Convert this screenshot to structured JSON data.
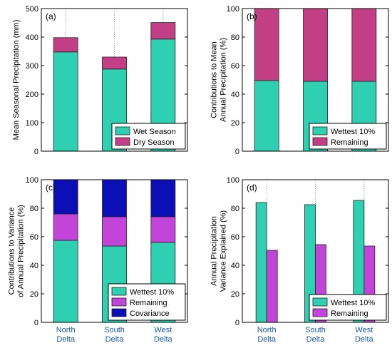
{
  "chart_data": [
    {
      "panel": "(a)",
      "type": "bar",
      "stacked": true,
      "categories": [
        "North\nDelta",
        "South\nDelta",
        "West\nDelta"
      ],
      "ylabel": "Mean Seasonal Precipitation (mm)",
      "ylim": [
        0,
        500
      ],
      "yticks": [
        0,
        100,
        200,
        300,
        400,
        500
      ],
      "grid": "vertical dotted at categories",
      "legend_position": "bottom-right",
      "series": [
        {
          "name": "Wet Season",
          "color": "#2fcfb2",
          "values": [
            348,
            288,
            393
          ]
        },
        {
          "name": "Dry Season",
          "color": "#c23f86",
          "values": [
            50,
            42,
            58
          ]
        }
      ]
    },
    {
      "panel": "(b)",
      "type": "bar",
      "stacked": true,
      "categories": [
        "North\nDelta",
        "South\nDelta",
        "West\nDelta"
      ],
      "ylabel": "Contributions to Mean\nAnnual Precipitation (%)",
      "ylim": [
        0,
        100
      ],
      "yticks": [
        0,
        20,
        40,
        60,
        80,
        100
      ],
      "grid": "vertical dotted at categories",
      "legend_position": "bottom-right",
      "series": [
        {
          "name": "Wettest 10%",
          "color": "#2fcfb2",
          "values": [
            49.5,
            49,
            49
          ]
        },
        {
          "name": "Remaining",
          "color": "#c23f86",
          "values": [
            50.5,
            51,
            51
          ]
        }
      ]
    },
    {
      "panel": "(c)",
      "type": "bar",
      "stacked": true,
      "categories": [
        "North\nDelta",
        "South\nDelta",
        "West\nDelta"
      ],
      "ylabel": "Contributions to Variance\nof Annual Precipitation (%)",
      "ylim": [
        0,
        100
      ],
      "yticks": [
        0,
        20,
        40,
        60,
        80,
        100
      ],
      "grid": "vertical dotted at categories",
      "legend_position": "bottom-right",
      "series": [
        {
          "name": "Wettest 10%",
          "color": "#2fcfb2",
          "values": [
            57.5,
            53.5,
            56
          ]
        },
        {
          "name": "Remaining",
          "color": "#c244d8",
          "values": [
            18.5,
            20.5,
            18
          ]
        },
        {
          "name": "Covariance",
          "color": "#0b0fb5",
          "values": [
            24,
            26,
            26
          ]
        }
      ]
    },
    {
      "panel": "(d)",
      "type": "bar",
      "stacked": false,
      "categories": [
        "North\nDelta",
        "South\nDelta",
        "West\nDelta"
      ],
      "ylabel": "Annual Precipitation\nVariance Explained (%)",
      "ylim": [
        0,
        100
      ],
      "yticks": [
        0,
        20,
        40,
        60,
        80,
        100
      ],
      "grid": "vertical dotted at categories",
      "legend_position": "bottom-right",
      "series": [
        {
          "name": "Wettest 10%",
          "color": "#2fcfb2",
          "values": [
            84,
            82.5,
            85.5
          ]
        },
        {
          "name": "Remaining",
          "color": "#c244d8",
          "values": [
            50.5,
            54.5,
            53.5
          ]
        }
      ]
    }
  ]
}
